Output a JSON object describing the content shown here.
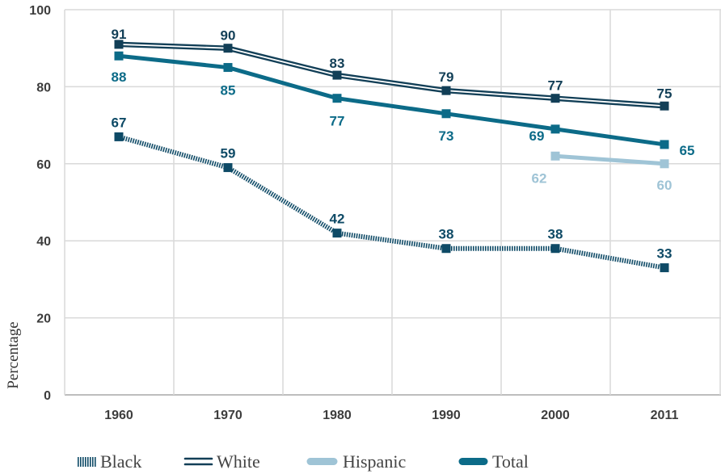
{
  "chart_data": {
    "type": "line",
    "title": "",
    "xlabel": "",
    "ylabel": "Percentage",
    "x": [
      "1960",
      "1970",
      "1980",
      "1990",
      "2000",
      "2011"
    ],
    "yticks": [
      "0",
      "20",
      "40",
      "60",
      "80",
      "100"
    ],
    "ylim": [
      0,
      100
    ],
    "grid": true,
    "legend_position": "bottom-left",
    "series": [
      {
        "name": "Black",
        "style": "hatched",
        "color": "#0e4a66",
        "values": [
          67,
          59,
          42,
          38,
          38,
          33
        ],
        "labels": [
          "67",
          "59",
          "42",
          "38",
          "38",
          "33"
        ]
      },
      {
        "name": "White",
        "style": "double",
        "color": "#123f57",
        "values": [
          91,
          90,
          83,
          79,
          77,
          75
        ],
        "labels": [
          "91",
          "90",
          "83",
          "79",
          "77",
          "75"
        ]
      },
      {
        "name": "Hispanic",
        "style": "solid-light",
        "color": "#9fc4d6",
        "values": [
          null,
          null,
          null,
          null,
          62,
          60
        ],
        "labels": [
          "",
          "",
          "",
          "",
          "62",
          "60"
        ]
      },
      {
        "name": "Total",
        "style": "solid-thick",
        "color": "#0c6b88",
        "values": [
          88,
          85,
          77,
          73,
          69,
          65
        ],
        "labels": [
          "88",
          "85",
          "77",
          "73",
          "69",
          "65"
        ]
      }
    ]
  }
}
